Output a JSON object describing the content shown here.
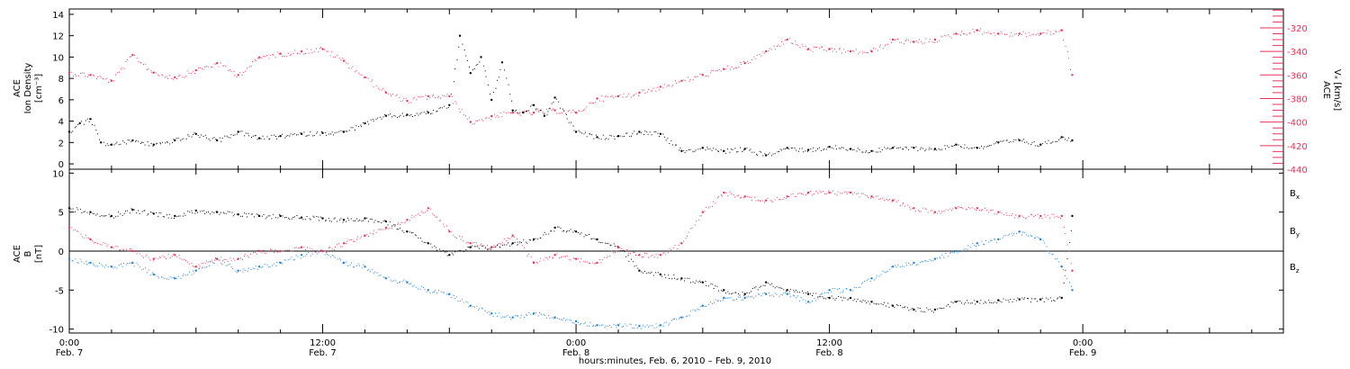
{
  "footer_text": "hours:minutes, Feb.  6, 2010 – Feb.  9, 2010",
  "colors": {
    "black": "#000000",
    "pink": "#e8335a",
    "blue": "#1a7fd6"
  },
  "chart_data": [
    {
      "type": "scatter",
      "panel": "top",
      "ylabel_lines": [
        "ACE",
        "Ion Density",
        "[cm⁻³]"
      ],
      "ylim": [
        -0.5,
        14.5
      ],
      "yticks": [
        0,
        2,
        4,
        6,
        8,
        10,
        12,
        14
      ],
      "y2label_lines": [
        "ACE",
        "Vₓ [km/s]"
      ],
      "y2lim": [
        -440,
        -304
      ],
      "y2ticks": [
        -440,
        -420,
        -400,
        -380,
        -360,
        -340,
        -320
      ],
      "xlim": [
        0,
        57.5
      ],
      "xtick_labels": [
        {
          "time": "0:00",
          "date": "Feb. 7"
        },
        {
          "time": "12:00",
          "date": "Feb. 7"
        },
        {
          "time": "0:00",
          "date": "Feb. 8"
        },
        {
          "time": "12:00",
          "date": "Feb. 8"
        },
        {
          "time": "0:00",
          "date": "Feb. 9"
        }
      ],
      "xtick_hours": [
        0,
        12,
        24,
        36,
        48
      ],
      "series": [
        {
          "axis": "left",
          "color": "#000000",
          "x": [
            0,
            0.5,
            1,
            1.5,
            2,
            3,
            4,
            5,
            6,
            7,
            8,
            9,
            10,
            11,
            12,
            13,
            14,
            15,
            16,
            17,
            18,
            18.5,
            19,
            19.5,
            20,
            20.5,
            21,
            21.5,
            22,
            22.5,
            23,
            24,
            25,
            26,
            27,
            28,
            29,
            30,
            31,
            32,
            33,
            34,
            35,
            36,
            37,
            38,
            39,
            40,
            41,
            42,
            43,
            44,
            45,
            46,
            47,
            47.5
          ],
          "y": [
            3.0,
            3.8,
            4.2,
            2.0,
            1.8,
            2.2,
            1.8,
            2.2,
            2.8,
            2.2,
            3.0,
            2.4,
            2.6,
            2.8,
            2.9,
            3.0,
            3.8,
            4.5,
            4.6,
            4.8,
            5.5,
            12.0,
            8.5,
            10.0,
            6.0,
            9.5,
            5.0,
            4.8,
            5.5,
            4.5,
            6.2,
            3.0,
            2.5,
            2.6,
            3.0,
            2.8,
            1.2,
            1.5,
            1.2,
            1.4,
            0.8,
            1.5,
            1.3,
            1.6,
            1.4,
            1.2,
            1.5,
            1.5,
            1.4,
            1.8,
            1.5,
            2.0,
            2.2,
            1.8,
            2.5,
            2.2
          ]
        },
        {
          "axis": "right",
          "color": "#e8335a",
          "x": [
            0,
            1,
            2,
            3,
            4,
            5,
            6,
            7,
            8,
            9,
            10,
            11,
            12,
            13,
            14,
            15,
            16,
            17,
            18,
            19,
            20,
            21,
            22,
            23,
            24,
            25,
            26,
            27,
            28,
            29,
            30,
            31,
            32,
            33,
            34,
            35,
            36,
            37,
            38,
            39,
            40,
            41,
            42,
            43,
            44,
            45,
            46,
            47,
            47.5
          ],
          "y": [
            -358,
            -360,
            -365,
            -343,
            -358,
            -362,
            -356,
            -350,
            -360,
            -345,
            -342,
            -340,
            -338,
            -348,
            -362,
            -375,
            -382,
            -378,
            -378,
            -400,
            -395,
            -392,
            -392,
            -390,
            -392,
            -380,
            -378,
            -375,
            -370,
            -365,
            -360,
            -355,
            -350,
            -340,
            -330,
            -338,
            -338,
            -340,
            -340,
            -330,
            -332,
            -330,
            -325,
            -322,
            -325,
            -325,
            -325,
            -322,
            -360
          ]
        }
      ]
    },
    {
      "type": "scatter",
      "panel": "bottom",
      "ylabel_lines": [
        "ACE",
        "B",
        "[nT]"
      ],
      "ylim": [
        -10.5,
        10.5
      ],
      "yticks": [
        -10,
        -5,
        0,
        5,
        10
      ],
      "xlim": [
        0,
        57.5
      ],
      "zero_line": true,
      "xtick_labels": [
        {
          "time": "0:00",
          "date": "Feb. 7"
        },
        {
          "time": "12:00",
          "date": "Feb. 7"
        },
        {
          "time": "0:00",
          "date": "Feb. 8"
        },
        {
          "time": "12:00",
          "date": "Feb. 8"
        },
        {
          "time": "0:00",
          "date": "Feb. 9"
        }
      ],
      "xtick_hours": [
        0,
        12,
        24,
        36,
        48
      ],
      "legend": "right",
      "series": [
        {
          "name": "Bx",
          "color": "#000000",
          "x": [
            0,
            1,
            2,
            3,
            4,
            5,
            6,
            7,
            8,
            9,
            10,
            11,
            12,
            13,
            14,
            15,
            16,
            17,
            18,
            19,
            20,
            21,
            22,
            23,
            24,
            25,
            26,
            27,
            28,
            29,
            30,
            31,
            32,
            33,
            34,
            35,
            36,
            37,
            38,
            39,
            40,
            41,
            42,
            43,
            44,
            45,
            46,
            47,
            47.5
          ],
          "y": [
            5.5,
            5.0,
            4.5,
            5.3,
            4.8,
            4.5,
            5.2,
            5.0,
            4.7,
            4.5,
            4.5,
            4.3,
            4.2,
            4.0,
            4.2,
            3.8,
            2.5,
            1.0,
            -0.5,
            0.5,
            0.5,
            1.0,
            1.5,
            3.0,
            2.5,
            1.5,
            0.5,
            -2.5,
            -3.0,
            -3.5,
            -4.0,
            -5.0,
            -5.5,
            -4.0,
            -5.0,
            -5.5,
            -6.0,
            -6.0,
            -6.5,
            -7.0,
            -7.5,
            -7.5,
            -6.5,
            -6.5,
            -6.3,
            -6.2,
            -6.2,
            -6.0,
            4.5
          ]
        },
        {
          "name": "By",
          "color": "#1a7fd6",
          "x": [
            0,
            1,
            2,
            3,
            4,
            5,
            6,
            7,
            8,
            9,
            10,
            11,
            12,
            13,
            14,
            15,
            16,
            17,
            18,
            19,
            20,
            21,
            22,
            23,
            24,
            25,
            26,
            27,
            28,
            29,
            30,
            31,
            32,
            33,
            34,
            35,
            36,
            37,
            38,
            39,
            40,
            41,
            42,
            43,
            44,
            45,
            46,
            47,
            47.5
          ],
          "y": [
            -1.0,
            -1.5,
            -2.0,
            -1.5,
            -3.0,
            -3.5,
            -2.5,
            -1.0,
            -2.5,
            -2.0,
            -1.5,
            -0.5,
            0.0,
            -1.5,
            -2.0,
            -3.5,
            -4.0,
            -5.0,
            -5.5,
            -7.0,
            -8.0,
            -8.5,
            -8.0,
            -8.5,
            -9.0,
            -9.5,
            -9.5,
            -9.6,
            -9.5,
            -8.5,
            -7.0,
            -6.0,
            -6.0,
            -5.5,
            -5.5,
            -6.5,
            -5.0,
            -5.0,
            -3.5,
            -2.0,
            -1.5,
            -1.0,
            0.0,
            1.0,
            1.5,
            2.5,
            1.5,
            -2.0,
            -5.0
          ]
        },
        {
          "name": "Bz",
          "color": "#e8335a",
          "x": [
            0,
            1,
            2,
            3,
            4,
            5,
            6,
            7,
            8,
            9,
            10,
            11,
            12,
            13,
            14,
            15,
            16,
            17,
            18,
            19,
            20,
            21,
            22,
            23,
            24,
            25,
            26,
            27,
            28,
            29,
            30,
            31,
            32,
            33,
            34,
            35,
            36,
            37,
            38,
            39,
            40,
            41,
            42,
            43,
            44,
            45,
            46,
            47,
            47.5
          ],
          "y": [
            3.0,
            1.5,
            0.5,
            0.0,
            -1.0,
            -0.5,
            -2.0,
            -1.0,
            -1.0,
            0.0,
            0.0,
            0.5,
            0.0,
            1.0,
            2.0,
            3.0,
            4.0,
            5.5,
            2.5,
            1.0,
            0.5,
            2.0,
            -1.5,
            -0.5,
            -1.0,
            -1.5,
            0.5,
            -0.5,
            -0.5,
            1.0,
            5.0,
            7.5,
            7.0,
            6.5,
            7.0,
            7.5,
            7.5,
            7.5,
            7.0,
            6.5,
            5.5,
            5.0,
            5.5,
            5.5,
            5.0,
            4.5,
            4.5,
            4.5,
            -2.5
          ]
        }
      ]
    }
  ]
}
